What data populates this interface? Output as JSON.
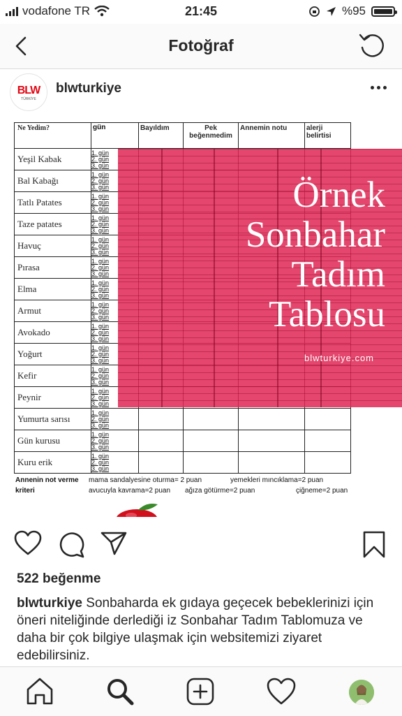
{
  "status_bar": {
    "carrier": "vodafone TR",
    "time": "21:45",
    "battery": "%95"
  },
  "nav": {
    "title": "Fotoğraf"
  },
  "post": {
    "username": "blwturkiye",
    "avatar_logo": "BLW",
    "avatar_sub": "TÜRKİYE",
    "likes": "522 beğenme",
    "caption_user": "blwturkiye",
    "caption_text": "Sonbaharda ek gıdaya geçecek bebeklerinizi için öneri niteliğinde derlediği iz Sonbahar Tadım Tablomuza ve daha bir çok bilgiye ulaşmak için websitemizi ziyaret edebilirsiniz."
  },
  "image": {
    "table_headers": [
      "Ne Yedim?",
      "gün",
      "Bayıldım",
      "Pek beğenmedim",
      "Annemin notu",
      "alerji belirtisi"
    ],
    "days": [
      "1. gün",
      "2. gün",
      "3. gün"
    ],
    "foods": [
      "Yeşil Kabak",
      "Bal Kabağı",
      "Tatlı Patates",
      "Taze patates",
      "Havuç",
      "Pırasa",
      "Elma",
      "Armut",
      "Avokado",
      "Yoğurt",
      "Kefir",
      "Peynir",
      "Yumurta sarısı",
      "Gün kurusu",
      "Kuru erik"
    ],
    "overlay_lines": [
      "Örnek",
      "Sonbahar",
      "Tadım",
      "Tablosu"
    ],
    "overlay_site": "blwturkiye.com",
    "criteria_label_1": "Annenin not verme",
    "criteria_label_2": "kriteri",
    "criteria": [
      "mama sandalyesine oturma= 2 puan",
      "yemekleri mıncıklama=2 puan",
      "avucuyla kavrama=2 puan",
      "ağıza götürme=2 puan",
      "çiğneme=2 puan"
    ],
    "accent_color": "#e12855"
  }
}
